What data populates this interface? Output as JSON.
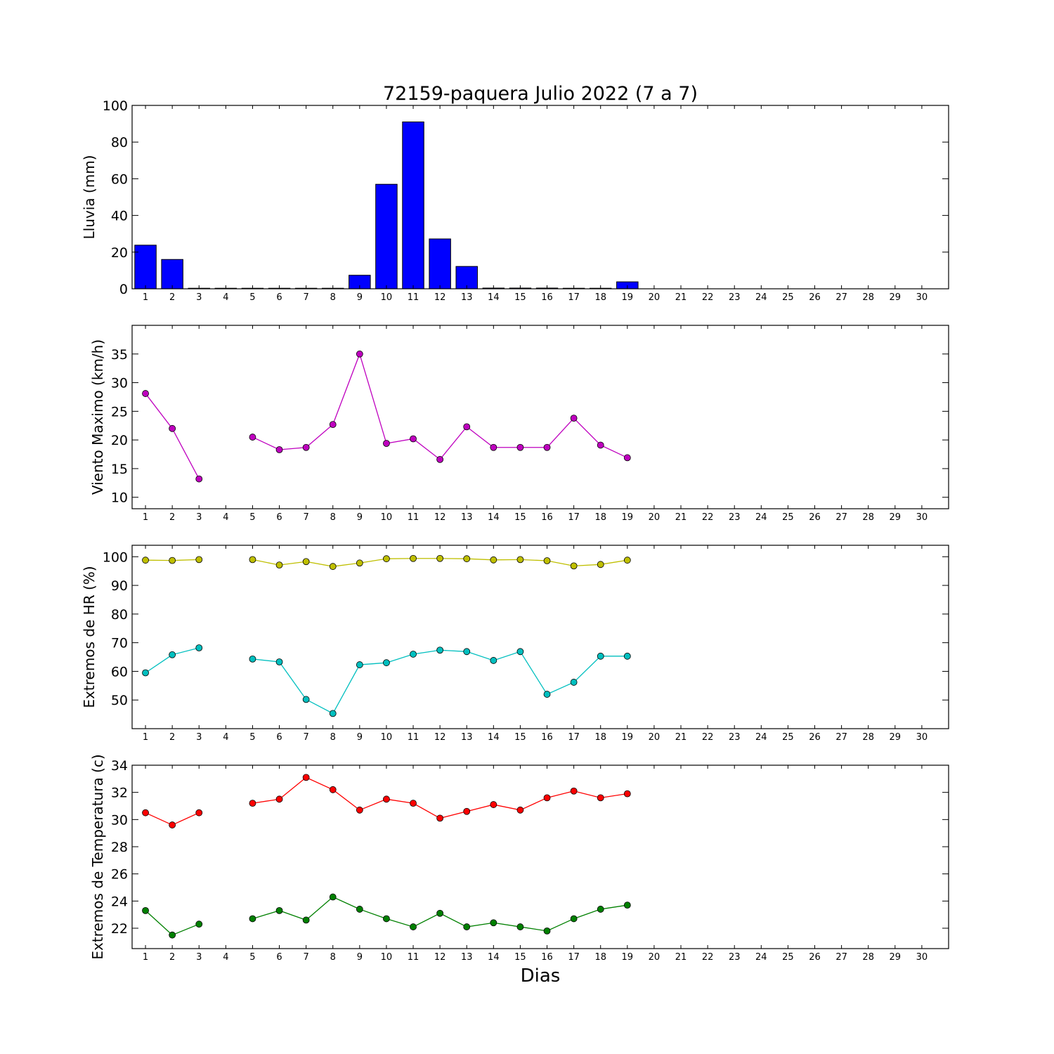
{
  "title": "72159-paquera Julio 2022  (7 a 7)",
  "xlabel": "Dias",
  "days": [
    1,
    2,
    3,
    4,
    5,
    6,
    7,
    8,
    9,
    10,
    11,
    12,
    13,
    14,
    15,
    16,
    17,
    18,
    19,
    20,
    21,
    22,
    23,
    24,
    25,
    26,
    27,
    28,
    29,
    30
  ],
  "colors": {
    "rain": "#0000ff",
    "wind": "#bf00bf",
    "hr_max": "#bfbf00",
    "hr_min": "#00bfbf",
    "temp_max": "#ff0000",
    "temp_min": "#008000"
  },
  "chart_data": [
    {
      "type": "bar",
      "ylabel": "Lluvia (mm)",
      "ylim": [
        0,
        100
      ],
      "yticks": [
        0,
        20,
        40,
        60,
        80,
        100
      ],
      "categories": [
        1,
        2,
        3,
        4,
        5,
        6,
        7,
        8,
        9,
        10,
        11,
        12,
        13,
        14,
        15,
        16,
        17,
        18,
        19,
        20,
        21,
        22,
        23,
        24,
        25,
        26,
        27,
        28,
        29,
        30
      ],
      "values": [
        23.8,
        16.0,
        0,
        0,
        0,
        0,
        0,
        0,
        7.4,
        57.0,
        91.0,
        27.2,
        12.2,
        0.4,
        0.4,
        0.4,
        0,
        0,
        3.8,
        null,
        null,
        null,
        null,
        null,
        null,
        null,
        null,
        null,
        null,
        null
      ]
    },
    {
      "type": "line",
      "ylabel": "Viento Maximo (km/h)",
      "ylim": [
        8,
        40
      ],
      "yticks": [
        10,
        15,
        20,
        25,
        30,
        35
      ],
      "x": [
        1,
        2,
        3,
        4,
        5,
        6,
        7,
        8,
        9,
        10,
        11,
        12,
        13,
        14,
        15,
        16,
        17,
        18,
        19
      ],
      "series": [
        {
          "values": [
            28.1,
            22.0,
            13.2,
            null,
            20.5,
            18.3,
            18.7,
            22.7,
            35.0,
            19.4,
            20.2,
            16.6,
            22.3,
            18.7,
            18.7,
            18.7,
            23.8,
            19.1,
            16.9
          ]
        }
      ]
    },
    {
      "type": "line",
      "ylabel": "Extremos de HR (%)",
      "ylim": [
        40,
        104
      ],
      "yticks": [
        50,
        60,
        70,
        80,
        90,
        100
      ],
      "x": [
        1,
        2,
        3,
        4,
        5,
        6,
        7,
        8,
        9,
        10,
        11,
        12,
        13,
        14,
        15,
        16,
        17,
        18,
        19
      ],
      "series": [
        {
          "values": [
            98.8,
            98.7,
            99.0,
            null,
            99.0,
            97.1,
            98.3,
            96.6,
            97.8,
            99.3,
            99.4,
            99.4,
            99.3,
            98.9,
            99.0,
            98.6,
            96.8,
            97.3,
            98.8
          ]
        },
        {
          "values": [
            59.5,
            65.8,
            68.2,
            null,
            64.3,
            63.3,
            50.2,
            45.3,
            62.3,
            63.0,
            66.0,
            67.4,
            66.9,
            63.8,
            66.9,
            52.0,
            56.2,
            65.3,
            65.3
          ]
        }
      ]
    },
    {
      "type": "line",
      "ylabel": "Extremos de Temperatura (c)",
      "ylim": [
        20.5,
        34
      ],
      "yticks": [
        22,
        24,
        26,
        28,
        30,
        32,
        34
      ],
      "x": [
        1,
        2,
        3,
        4,
        5,
        6,
        7,
        8,
        9,
        10,
        11,
        12,
        13,
        14,
        15,
        16,
        17,
        18,
        19
      ],
      "series": [
        {
          "values": [
            30.5,
            29.6,
            30.5,
            null,
            31.2,
            31.5,
            33.1,
            32.2,
            30.7,
            31.5,
            31.2,
            30.1,
            30.6,
            31.1,
            30.7,
            31.6,
            32.1,
            31.6,
            31.9
          ]
        },
        {
          "values": [
            23.3,
            21.5,
            22.3,
            null,
            22.7,
            23.3,
            22.6,
            24.3,
            23.4,
            22.7,
            22.1,
            23.1,
            22.1,
            22.4,
            22.1,
            21.8,
            22.7,
            23.4,
            23.7
          ]
        }
      ]
    }
  ]
}
